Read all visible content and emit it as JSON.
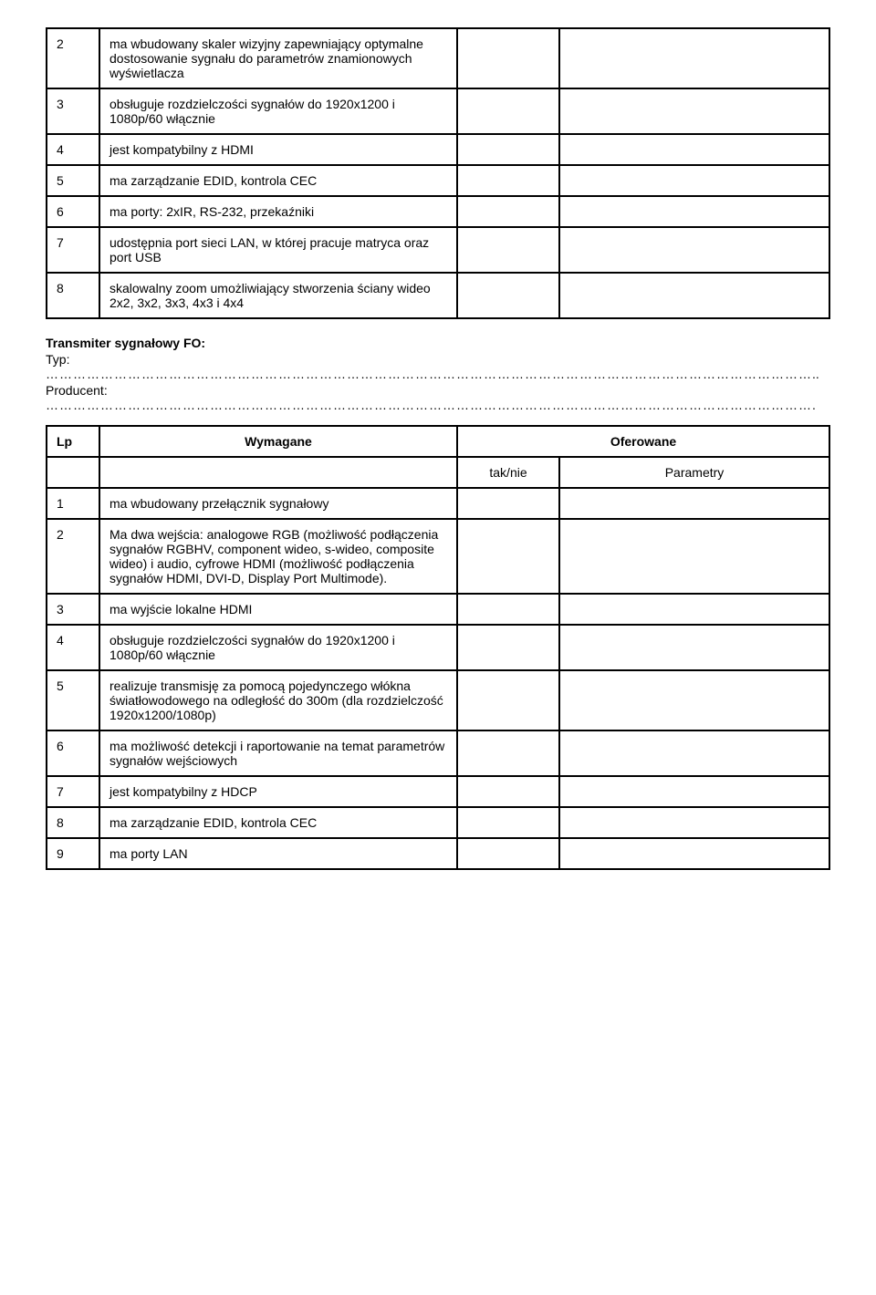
{
  "table1": {
    "rows": [
      {
        "num": "2",
        "text": "ma wbudowany skaler wizyjny zapewniający optymalne dostosowanie sygnału do parametrów znamionowych wyświetlacza"
      },
      {
        "num": "3",
        "text": "obsługuje rozdzielczości sygnałów do 1920x1200 i 1080p/60 włącznie"
      },
      {
        "num": "4",
        "text": "jest kompatybilny z HDMI"
      },
      {
        "num": "5",
        "text": "ma zarządzanie EDID, kontrola CEC"
      },
      {
        "num": "6",
        "text": "ma porty: 2xIR, RS-232, przekaźniki"
      },
      {
        "num": "7",
        "text": "udostępnia port sieci LAN, w której pracuje matryca oraz port USB"
      },
      {
        "num": "8",
        "text": "skalowalny zoom umożliwiający stworzenia ściany wideo 2x2, 3x2, 3x3, 4x3 i 4x4"
      }
    ]
  },
  "section": {
    "title": "Transmiter sygnałowy FO:",
    "typ_label": "Typ:",
    "producent_label": "Producent:"
  },
  "table2": {
    "header_lp": "Lp",
    "header_wymagane": "Wymagane",
    "header_oferowane": "Oferowane",
    "header_taknie": "tak/nie",
    "header_parametry": "Parametry",
    "rows": [
      {
        "num": "1",
        "text": "ma wbudowany przełącznik sygnałowy"
      },
      {
        "num": "2",
        "text": "Ma dwa wejścia: analogowe RGB (możliwość podłączenia sygnałów RGBHV, component wideo, s-wideo, composite wideo) i audio, cyfrowe HDMI (możliwość podłączenia sygnałów HDMI, DVI-D, Display Port Multimode)."
      },
      {
        "num": "3",
        "text": "ma wyjście lokalne HDMI"
      },
      {
        "num": "4",
        "text": "obsługuje rozdzielczości sygnałów do 1920x1200 i 1080p/60 włącznie"
      },
      {
        "num": "5",
        "text": "realizuje transmisję za pomocą pojedynczego włókna światłowodowego na odległość do 300m (dla rozdzielczość 1920x1200/1080p)"
      },
      {
        "num": "6",
        "text": "ma możliwość detekcji i raportowanie na temat parametrów sygnałów wejściowych"
      },
      {
        "num": "7",
        "text": "jest kompatybilny z HDCP"
      },
      {
        "num": "8",
        "text": "ma zarządzanie EDID, kontrola CEC"
      },
      {
        "num": "9",
        "text": "ma porty LAN"
      }
    ]
  }
}
